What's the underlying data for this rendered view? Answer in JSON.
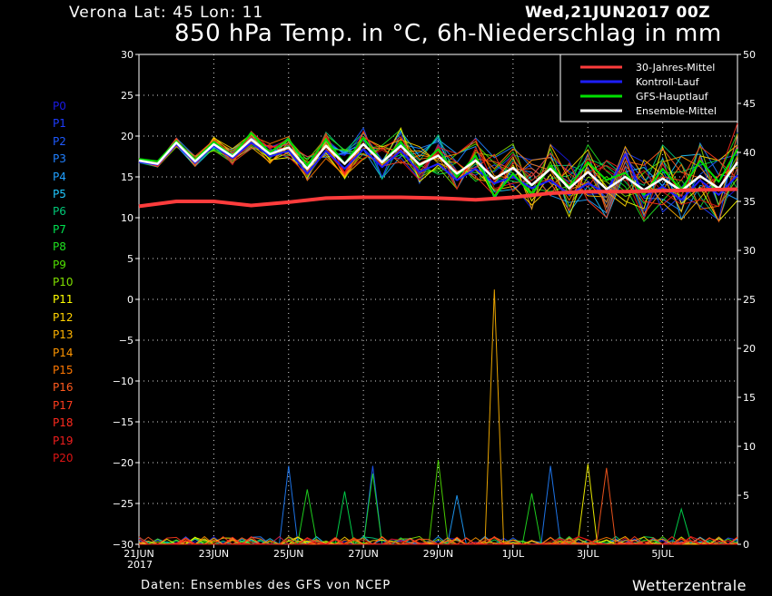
{
  "header": {
    "location": "Verona   Lat: 45 Lon: 11",
    "run_date": "Wed,21JUN2017 00Z",
    "title": "850 hPa Temp. in °C, 6h-Niederschlag in mm"
  },
  "footer": {
    "source": "Daten: Ensembles des GFS von NCEP",
    "brand": "Wetterzentrale"
  },
  "members": [
    {
      "label": "P0",
      "color": "#1a1ae6"
    },
    {
      "label": "P1",
      "color": "#1e3cff"
    },
    {
      "label": "P2",
      "color": "#1e5aff"
    },
    {
      "label": "P3",
      "color": "#2080ff"
    },
    {
      "label": "P4",
      "color": "#20a0ff"
    },
    {
      "label": "P5",
      "color": "#20c8ff"
    },
    {
      "label": "P6",
      "color": "#00c878"
    },
    {
      "label": "P7",
      "color": "#00e050"
    },
    {
      "label": "P8",
      "color": "#20e020"
    },
    {
      "label": "P9",
      "color": "#50e000"
    },
    {
      "label": "P10",
      "color": "#80e000"
    },
    {
      "label": "P11",
      "color": "#ffff00"
    },
    {
      "label": "P12",
      "color": "#ffd200"
    },
    {
      "label": "P13",
      "color": "#ffb400"
    },
    {
      "label": "P14",
      "color": "#ff9600"
    },
    {
      "label": "P15",
      "color": "#ff7800"
    },
    {
      "label": "P16",
      "color": "#ff5a1e"
    },
    {
      "label": "P17",
      "color": "#ff3c1e"
    },
    {
      "label": "P18",
      "color": "#ff2a1e"
    },
    {
      "label": "P19",
      "color": "#f01e1e"
    },
    {
      "label": "P20",
      "color": "#dc1414"
    }
  ],
  "chart_data": {
    "type": "line",
    "x_range": [
      "21JUN2017 00Z",
      "7JUL2017 00Z"
    ],
    "x_ticks": [
      {
        "day": 0,
        "label": "21JUN"
      },
      {
        "day": 2,
        "label": "23JUN"
      },
      {
        "day": 4,
        "label": "25JUN"
      },
      {
        "day": 6,
        "label": "27JUN"
      },
      {
        "day": 8,
        "label": "29JUN"
      },
      {
        "day": 10,
        "label": "1JUL"
      },
      {
        "day": 12,
        "label": "3JUL"
      },
      {
        "day": 14,
        "label": "5JUL"
      }
    ],
    "x_year_label": "2017",
    "left_axis": {
      "unit": "°C",
      "ylim": [
        -30,
        30
      ],
      "ticks": [
        30,
        25,
        20,
        15,
        10,
        5,
        0,
        -5,
        -10,
        -15,
        -20,
        -25,
        -30
      ]
    },
    "right_axis": {
      "unit": "mm",
      "ylim": [
        0,
        50
      ],
      "ticks": [
        50,
        45,
        40,
        35,
        30,
        25,
        20,
        15,
        10,
        5,
        0
      ]
    },
    "grid": true,
    "legend_position": "top-right",
    "legend": [
      {
        "name": "30-Jahres-Mittel",
        "color": "#ff3c3c"
      },
      {
        "name": "Kontroll-Lauf",
        "color": "#1e1eff"
      },
      {
        "name": "GFS-Hauptlauf",
        "color": "#00e000"
      },
      {
        "name": "Ensemble-Mittel",
        "color": "#ffffff"
      }
    ],
    "temperature_series": [
      {
        "legend_ref": "30-Jahres-Mittel",
        "x_days": [
          0,
          1,
          2,
          3,
          4,
          5,
          6,
          7,
          8,
          9,
          10,
          11,
          12,
          13,
          14,
          15,
          16
        ],
        "values": [
          11.4,
          12.0,
          12.0,
          11.5,
          11.9,
          12.4,
          12.5,
          12.5,
          12.4,
          12.2,
          12.5,
          13.0,
          13.2,
          13.2,
          13.3,
          13.4,
          13.5
        ]
      },
      {
        "legend_ref": "Ensemble-Mittel",
        "x_days": [
          0,
          0.5,
          1,
          1.5,
          2,
          2.5,
          3,
          3.5,
          4,
          4.5,
          5,
          5.5,
          6,
          6.5,
          7,
          7.5,
          8,
          8.5,
          9,
          9.5,
          10,
          10.5,
          11,
          11.5,
          12,
          12.5,
          13,
          13.5,
          14,
          14.5,
          15,
          15.5,
          16
        ],
        "values": [
          17.0,
          16.6,
          19.2,
          16.9,
          19.0,
          17.5,
          19.6,
          17.8,
          18.6,
          16.0,
          18.8,
          16.6,
          19.0,
          16.8,
          18.8,
          16.5,
          17.6,
          15.4,
          17.0,
          14.8,
          16.1,
          14.0,
          16.0,
          13.6,
          15.6,
          13.5,
          15.0,
          13.4,
          14.8,
          13.3,
          15.1,
          13.6,
          16.8
        ]
      },
      {
        "legend_ref": "GFS-Hauptlauf",
        "x_days": [
          0,
          0.5,
          1,
          1.5,
          2,
          2.5,
          3,
          3.5,
          4,
          4.5,
          5,
          5.5,
          6,
          6.5,
          7,
          7.5,
          8,
          8.5,
          9,
          9.5,
          10,
          10.5,
          11,
          11.5,
          12,
          12.5,
          13,
          13.5,
          14,
          14.5,
          15,
          15.5,
          16
        ],
        "values": [
          17.2,
          16.9,
          19.4,
          17.1,
          19.3,
          17.6,
          20.4,
          18.0,
          19.6,
          16.4,
          19.6,
          16.6,
          19.8,
          16.7,
          19.3,
          16.2,
          18.4,
          15.0,
          17.6,
          12.6,
          15.4,
          12.8,
          16.4,
          13.8,
          16.8,
          14.6,
          15.5,
          12.8,
          16.0,
          13.4,
          17.0,
          14.4,
          18.4
        ]
      },
      {
        "legend_ref": "Kontroll-Lauf",
        "x_days": [
          0,
          0.5,
          1,
          1.5,
          2,
          2.5,
          3,
          3.5,
          4,
          4.5,
          5,
          5.5,
          6,
          6.5,
          7,
          7.5,
          8,
          8.5,
          9,
          9.5,
          10,
          10.5,
          11,
          11.5,
          12,
          12.5,
          13,
          13.5,
          14,
          14.5,
          15,
          15.5,
          16
        ],
        "values": [
          16.8,
          16.5,
          19.0,
          16.7,
          18.8,
          17.3,
          19.2,
          17.5,
          18.2,
          15.4,
          18.2,
          16.0,
          18.4,
          16.2,
          18.2,
          15.6,
          16.6,
          14.6,
          16.0,
          14.2,
          15.0,
          13.6,
          14.6,
          12.8,
          14.2,
          13.0,
          17.8,
          12.6,
          13.8,
          12.2,
          14.6,
          12.8,
          15.2
        ]
      }
    ],
    "ensemble_spread_note": "",
    "precip_peaks_mm": [
      {
        "day": 4.1,
        "value": 8.0,
        "member": "P3"
      },
      {
        "day": 4.5,
        "value": 5.6,
        "member": "P8"
      },
      {
        "day": 5.4,
        "value": 5.4,
        "member": "P7"
      },
      {
        "day": 6.2,
        "value": 8.0,
        "member": "P2"
      },
      {
        "day": 6.2,
        "value": 7.2,
        "member": "P8"
      },
      {
        "day": 8.0,
        "value": 8.6,
        "member": "P9"
      },
      {
        "day": 8.6,
        "value": 5.0,
        "member": "P4"
      },
      {
        "day": 9.5,
        "value": 26.0,
        "member": "P13"
      },
      {
        "day": 10.5,
        "value": 5.2,
        "member": "P8"
      },
      {
        "day": 11.0,
        "value": 8.0,
        "member": "P3"
      },
      {
        "day": 12.0,
        "value": 8.2,
        "member": "P11"
      },
      {
        "day": 12.5,
        "value": 7.8,
        "member": "P16"
      },
      {
        "day": 14.5,
        "value": 3.6,
        "member": "P7"
      }
    ]
  }
}
